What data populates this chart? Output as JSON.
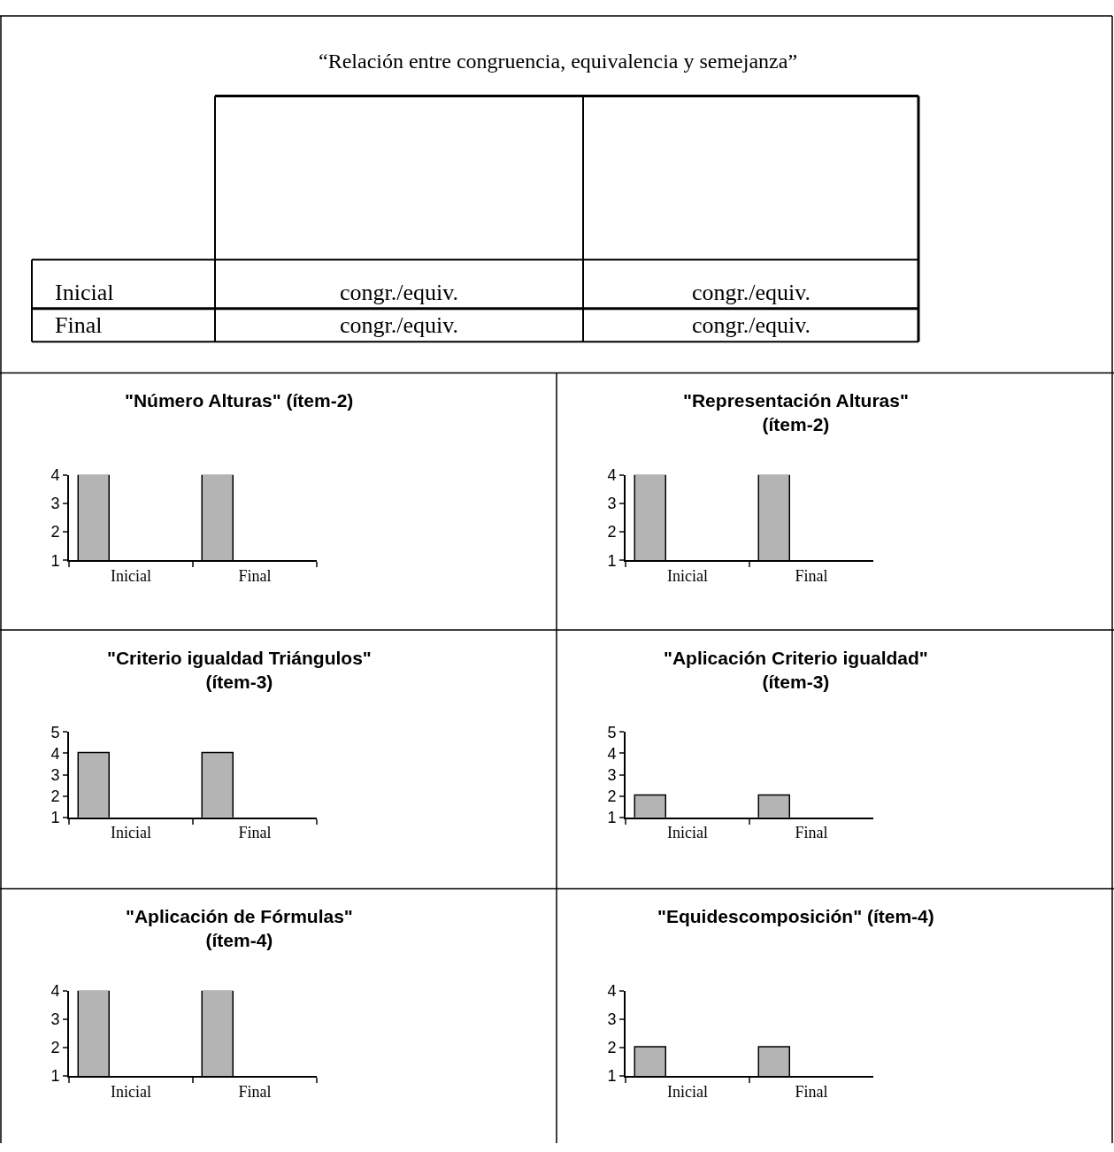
{
  "chart_data": [
    {
      "type": "other",
      "title": "“Relación entre congruencia, equivalencia y semejanza”",
      "annotations": [
        "Inicial",
        "congr./equiv.",
        "congr./equiv.",
        "Final",
        "congr./equiv.",
        "congr./equiv."
      ]
    },
    {
      "type": "bar",
      "title": "\"Número Alturas\" (ítem-2)",
      "categories": [
        "Inicial",
        "Final"
      ],
      "values": [
        4,
        4
      ],
      "color": "#b4b4b4",
      "ylim": [
        1,
        4
      ],
      "yticks": [
        1,
        2,
        3,
        4
      ]
    },
    {
      "type": "bar",
      "title": "\"Representación Alturas\"\n(ítem-2)",
      "categories": [
        "Inicial",
        "Final"
      ],
      "values": [
        4,
        4
      ],
      "color": "#b4b4b4",
      "ylim": [
        1,
        4
      ],
      "yticks": [
        1,
        2,
        3,
        4
      ]
    },
    {
      "type": "bar",
      "title": "\"Criterio igualdad Triángulos\"\n(ítem-3)",
      "categories": [
        "Inicial",
        "Final"
      ],
      "values": [
        4,
        4
      ],
      "color": "#b4b4b4",
      "ylim": [
        1,
        5
      ],
      "yticks": [
        1,
        2,
        3,
        4,
        5
      ]
    },
    {
      "type": "bar",
      "title": "\"Aplicación Criterio igualdad\"\n(ítem-3)",
      "categories": [
        "Inicial",
        "Final"
      ],
      "values": [
        2,
        2
      ],
      "color": "#b4b4b4",
      "ylim": [
        1,
        5
      ],
      "yticks": [
        1,
        2,
        3,
        4,
        5
      ]
    },
    {
      "type": "bar",
      "title": "\"Aplicación de Fórmulas\"\n(ítem-4)",
      "categories": [
        "Inicial",
        "Final"
      ],
      "values": [
        4,
        4
      ],
      "color": "#b4b4b4",
      "ylim": [
        1,
        4
      ],
      "yticks": [
        1,
        2,
        3,
        4
      ]
    },
    {
      "type": "bar",
      "title": "\"Equidescomposición\" (ítem-4)",
      "categories": [
        "Inicial",
        "Final"
      ],
      "values": [
        2,
        2
      ],
      "color": "#b4b4b4",
      "ylim": [
        1,
        4
      ],
      "yticks": [
        1,
        2,
        3,
        4
      ]
    }
  ]
}
